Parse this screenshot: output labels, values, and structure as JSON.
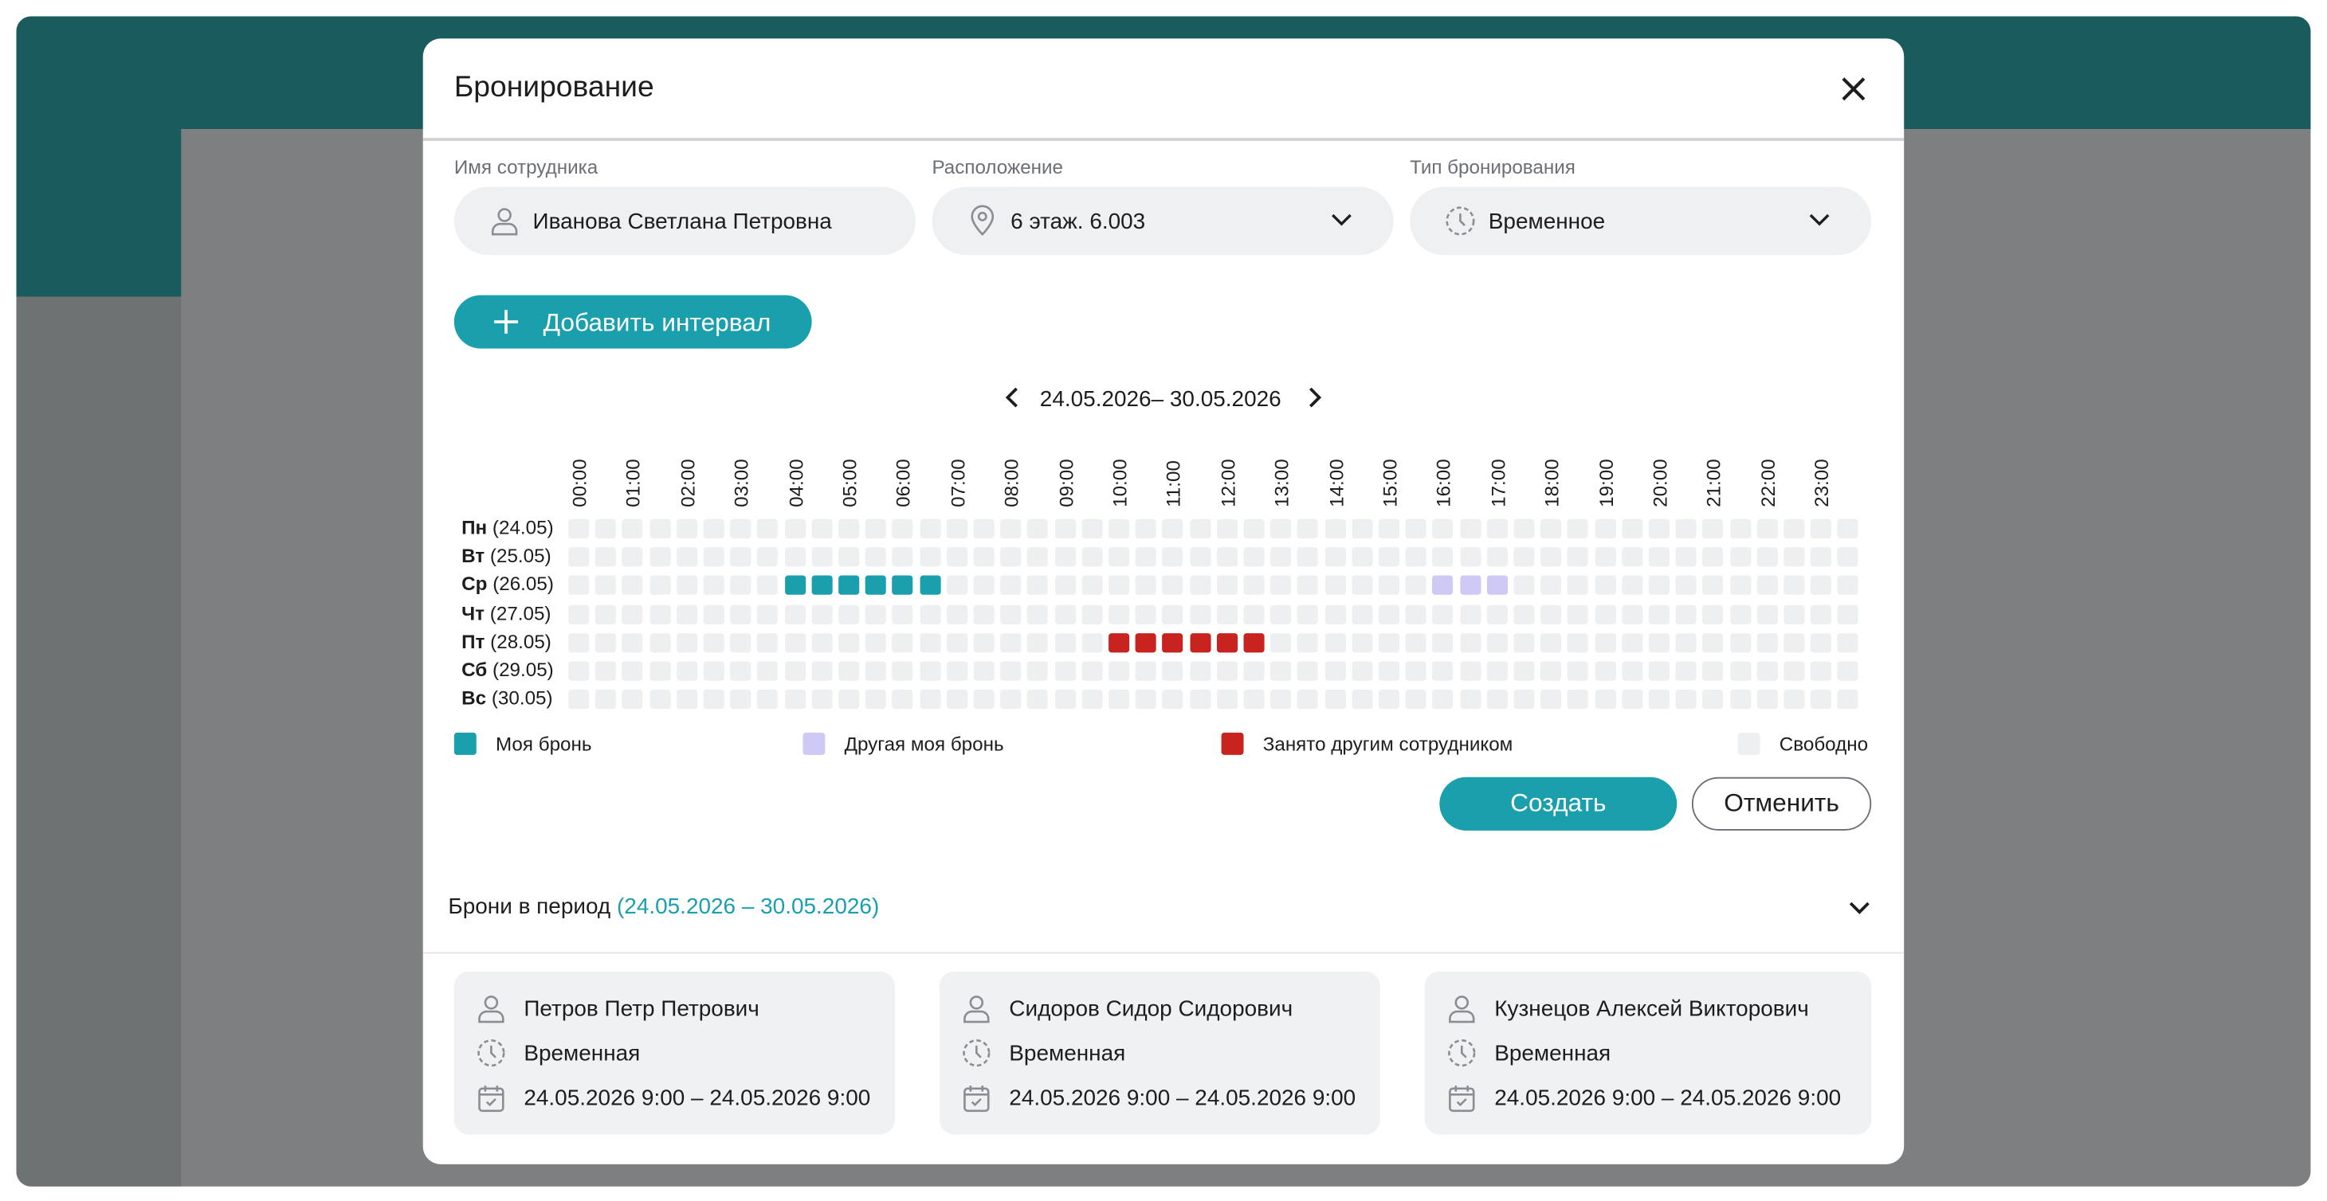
{
  "modal": {
    "title": "Бронирование",
    "fields": [
      {
        "label": "Имя сотрудника",
        "value": "Иванова Светлана Петровна"
      },
      {
        "label": "Расположение",
        "value": "6 этаж. 6.003"
      },
      {
        "label": "Тип бронирования",
        "value": "Временное"
      }
    ],
    "add_button": "Добавить интервал",
    "date_range": "24.05.2026– 30.05.2026",
    "hours": [
      "00:00",
      "01:00",
      "02:00",
      "03:00",
      "04:00",
      "05:00",
      "06:00",
      "07:00",
      "08:00",
      "09:00",
      "10:00",
      "11:00",
      "12:00",
      "13:00",
      "14:00",
      "15:00",
      "16:00",
      "17:00",
      "18:00",
      "19:00",
      "20:00",
      "21:00",
      "22:00",
      "23:00"
    ],
    "legend": [
      {
        "name": "Моя бронь",
        "color": "#1a9fad"
      },
      {
        "name": "Другая моя бронь",
        "color": "#cfc9f5"
      },
      {
        "name": "Занято другим сотрудником",
        "color": "#c8231e"
      },
      {
        "name": "Свободно",
        "color": "#eeeff0"
      }
    ],
    "days": [
      {
        "day": "Пн",
        "date": "(24.05)",
        "cells": [
          3,
          3,
          3,
          3,
          3,
          3,
          3,
          3,
          3,
          3,
          3,
          3,
          3,
          3,
          3,
          3,
          3,
          3,
          3,
          3,
          3,
          3,
          3,
          3,
          3,
          3,
          3,
          3,
          3,
          3,
          3,
          3,
          3,
          3,
          3,
          3,
          3,
          3,
          3,
          3,
          3,
          3,
          3,
          3,
          3,
          3,
          3,
          3
        ]
      },
      {
        "day": "Вт",
        "date": "(25.05)",
        "cells": [
          3,
          3,
          3,
          3,
          3,
          3,
          3,
          3,
          3,
          3,
          3,
          3,
          3,
          3,
          3,
          3,
          3,
          3,
          3,
          3,
          3,
          3,
          3,
          3,
          3,
          3,
          3,
          3,
          3,
          3,
          3,
          3,
          3,
          3,
          3,
          3,
          3,
          3,
          3,
          3,
          3,
          3,
          3,
          3,
          3,
          3,
          3,
          3
        ]
      },
      {
        "day": "Ср",
        "date": "(26.05)",
        "cells": [
          3,
          3,
          3,
          3,
          3,
          3,
          3,
          3,
          0,
          0,
          0,
          0,
          0,
          0,
          3,
          3,
          3,
          3,
          3,
          3,
          3,
          3,
          3,
          3,
          3,
          3,
          3,
          3,
          3,
          3,
          3,
          3,
          1,
          1,
          1,
          3,
          3,
          3,
          3,
          3,
          3,
          3,
          3,
          3,
          3,
          3,
          3,
          3
        ]
      },
      {
        "day": "Чт",
        "date": "(27.05)",
        "cells": [
          3,
          3,
          3,
          3,
          3,
          3,
          3,
          3,
          3,
          3,
          3,
          3,
          3,
          3,
          3,
          3,
          3,
          3,
          3,
          3,
          3,
          3,
          3,
          3,
          3,
          3,
          3,
          3,
          3,
          3,
          3,
          3,
          3,
          3,
          3,
          3,
          3,
          3,
          3,
          3,
          3,
          3,
          3,
          3,
          3,
          3,
          3,
          3
        ]
      },
      {
        "day": "Пт",
        "date": "(28.05)",
        "cells": [
          3,
          3,
          3,
          3,
          3,
          3,
          3,
          3,
          3,
          3,
          3,
          3,
          3,
          3,
          3,
          3,
          3,
          3,
          3,
          3,
          2,
          2,
          2,
          2,
          2,
          2,
          3,
          3,
          3,
          3,
          3,
          3,
          3,
          3,
          3,
          3,
          3,
          3,
          3,
          3,
          3,
          3,
          3,
          3,
          3,
          3,
          3,
          3
        ]
      },
      {
        "day": "Сб",
        "date": "(29.05)",
        "cells": [
          3,
          3,
          3,
          3,
          3,
          3,
          3,
          3,
          3,
          3,
          3,
          3,
          3,
          3,
          3,
          3,
          3,
          3,
          3,
          3,
          3,
          3,
          3,
          3,
          3,
          3,
          3,
          3,
          3,
          3,
          3,
          3,
          3,
          3,
          3,
          3,
          3,
          3,
          3,
          3,
          3,
          3,
          3,
          3,
          3,
          3,
          3,
          3
        ]
      },
      {
        "day": "Вс",
        "date": "(30.05)",
        "cells": [
          3,
          3,
          3,
          3,
          3,
          3,
          3,
          3,
          3,
          3,
          3,
          3,
          3,
          3,
          3,
          3,
          3,
          3,
          3,
          3,
          3,
          3,
          3,
          3,
          3,
          3,
          3,
          3,
          3,
          3,
          3,
          3,
          3,
          3,
          3,
          3,
          3,
          3,
          3,
          3,
          3,
          3,
          3,
          3,
          3,
          3,
          3,
          3
        ]
      }
    ],
    "create_button": "Создать",
    "cancel_button": "Отменить",
    "bookings": {
      "title": "Брони в период",
      "period": "(24.05.2026 – 30.05.2026)",
      "cards": [
        {
          "name": "Петров Петр Петрович",
          "type": "Временная",
          "period": "24.05.2026 9:00 – 24.05.2026 9:00"
        },
        {
          "name": "Сидоров Сидор Сидорович",
          "type": "Временная",
          "period": "24.05.2026 9:00 – 24.05.2026 9:00"
        },
        {
          "name": "Кузнецов Алексей Викторович",
          "type": "Временная",
          "period": "24.05.2026  9:00 – 24.05.2026 9:00"
        }
      ]
    }
  }
}
